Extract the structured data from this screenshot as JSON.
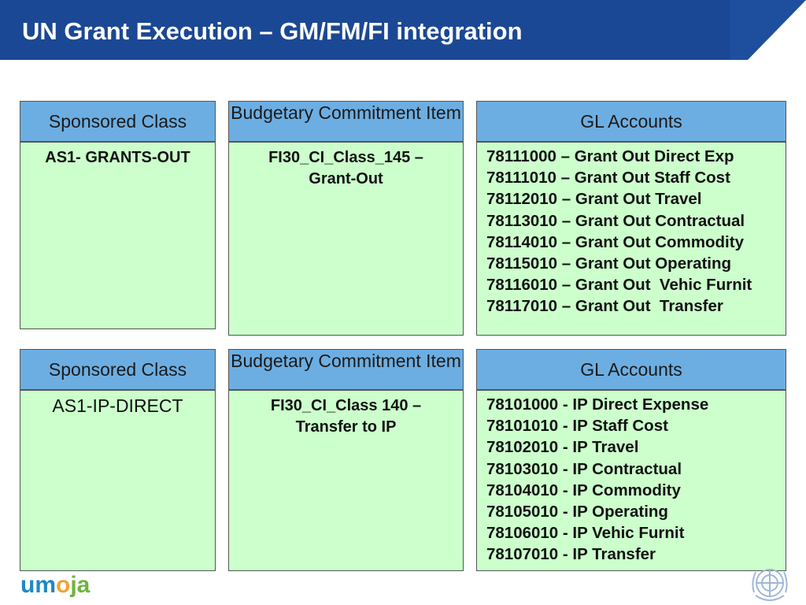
{
  "title": "UN Grant Execution – GM/FM/FI integration",
  "logo": {
    "part1": "um",
    "part2": "o",
    "part3": "ja"
  },
  "colors": {
    "title_bar": "#1b4894",
    "header_fill": "#6daee2",
    "body_fill": "#ccffcc"
  },
  "icons": {
    "emblem": "un-emblem-icon"
  },
  "sections": [
    {
      "sponsored_class": {
        "header": "Sponsored Class",
        "value": "AS1- GRANTS-OUT"
      },
      "budgetary": {
        "header": "Budgetary Commitment Item",
        "value": "FI30_CI_Class_145 – Grant-Out"
      },
      "gl_accounts": {
        "header": "GL Accounts",
        "items": [
          "78111000 – Grant Out Direct Exp",
          "78111010 – Grant Out Staff Cost",
          "78112010 – Grant Out Travel",
          "78113010 – Grant Out Contractual",
          "78114010 – Grant Out Commodity",
          "78115010 – Grant Out Operating",
          "78116010 – Grant Out  Vehic Furnit",
          "78117010 – Grant Out  Transfer"
        ]
      }
    },
    {
      "sponsored_class": {
        "header": "Sponsored Class",
        "value": "AS1-IP-DIRECT"
      },
      "budgetary": {
        "header": "Budgetary Commitment Item",
        "value": "FI30_CI_Class 140 – Transfer to IP"
      },
      "gl_accounts": {
        "header": "GL Accounts",
        "items": [
          "78101000 - IP Direct Expense",
          "78101010 - IP Staff Cost",
          "78102010 - IP Travel",
          "78103010 - IP Contractual",
          "78104010 - IP Commodity",
          "78105010 - IP Operating",
          "78106010 - IP Vehic Furnit",
          "78107010 - IP Transfer"
        ]
      }
    }
  ]
}
